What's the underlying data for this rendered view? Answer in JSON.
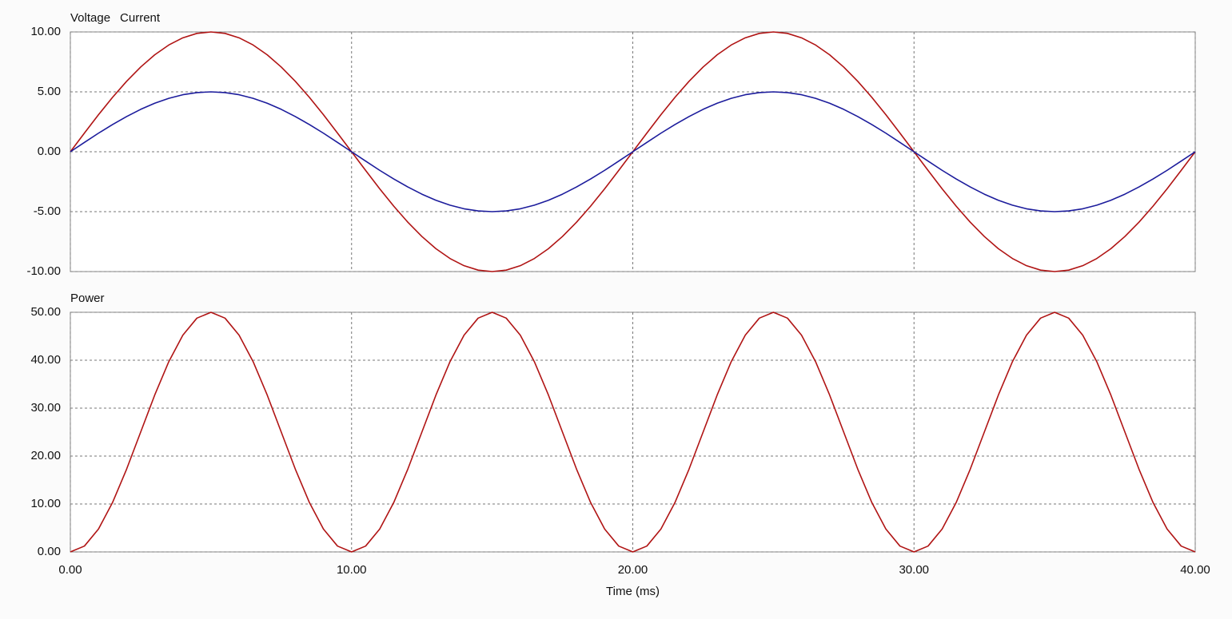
{
  "chart_data": [
    {
      "type": "line",
      "x": [
        0,
        0.5,
        1,
        1.5,
        2,
        2.5,
        3,
        3.5,
        4,
        4.5,
        5,
        5.5,
        6,
        6.5,
        7,
        7.5,
        8,
        8.5,
        9,
        9.5,
        10,
        10.5,
        11,
        11.5,
        12,
        12.5,
        13,
        13.5,
        14,
        14.5,
        15,
        15.5,
        16,
        16.5,
        17,
        17.5,
        18,
        18.5,
        19,
        19.5,
        20,
        20.5,
        21,
        21.5,
        22,
        22.5,
        23,
        23.5,
        24,
        24.5,
        25,
        25.5,
        26,
        26.5,
        27,
        27.5,
        28,
        28.5,
        29,
        29.5,
        30,
        30.5,
        31,
        31.5,
        32,
        32.5,
        33,
        33.5,
        34,
        34.5,
        35,
        35.5,
        36,
        36.5,
        37,
        37.5,
        38,
        38.5,
        39,
        39.5,
        40
      ],
      "series": [
        {
          "name": "Voltage",
          "color": "#b01414",
          "values": [
            0,
            1.56,
            3.09,
            4.54,
            5.88,
            7.07,
            8.09,
            8.91,
            9.51,
            9.88,
            10,
            9.88,
            9.51,
            8.91,
            8.09,
            7.07,
            5.88,
            4.54,
            3.09,
            1.56,
            0,
            -1.56,
            -3.09,
            -4.54,
            -5.88,
            -7.07,
            -8.09,
            -8.91,
            -9.51,
            -9.88,
            -10,
            -9.88,
            -9.51,
            -8.91,
            -8.09,
            -7.07,
            -5.88,
            -4.54,
            -3.09,
            -1.56,
            0,
            1.56,
            3.09,
            4.54,
            5.88,
            7.07,
            8.09,
            8.91,
            9.51,
            9.88,
            10,
            9.88,
            9.51,
            8.91,
            8.09,
            7.07,
            5.88,
            4.54,
            3.09,
            1.56,
            0,
            -1.56,
            -3.09,
            -4.54,
            -5.88,
            -7.07,
            -8.09,
            -8.91,
            -9.51,
            -9.88,
            -10,
            -9.88,
            -9.51,
            -8.91,
            -8.09,
            -7.07,
            -5.88,
            -4.54,
            -3.09,
            -1.56,
            0
          ]
        },
        {
          "name": "Current",
          "color": "#1c1c9c",
          "values": [
            0,
            0.78,
            1.55,
            2.27,
            2.94,
            3.54,
            4.05,
            4.46,
            4.76,
            4.94,
            5,
            4.94,
            4.76,
            4.46,
            4.05,
            3.54,
            2.94,
            2.27,
            1.55,
            0.78,
            0,
            -0.78,
            -1.55,
            -2.27,
            -2.94,
            -3.54,
            -4.05,
            -4.46,
            -4.76,
            -4.94,
            -5,
            -4.94,
            -4.76,
            -4.46,
            -4.05,
            -3.54,
            -2.94,
            -2.27,
            -1.55,
            -0.78,
            0,
            0.78,
            1.55,
            2.27,
            2.94,
            3.54,
            4.05,
            4.46,
            4.76,
            4.94,
            5,
            4.94,
            4.76,
            4.46,
            4.05,
            3.54,
            2.94,
            2.27,
            1.55,
            0.78,
            0,
            -0.78,
            -1.55,
            -2.27,
            -2.94,
            -3.54,
            -4.05,
            -4.46,
            -4.76,
            -4.94,
            -5,
            -4.94,
            -4.76,
            -4.46,
            -4.05,
            -3.54,
            -2.94,
            -2.27,
            -1.55,
            -0.78,
            0
          ]
        }
      ],
      "xlim": [
        0,
        40
      ],
      "xticks": [
        0,
        10,
        20,
        30,
        40
      ],
      "ylim": [
        -10,
        10
      ],
      "yticks": [
        {
          "value": -10,
          "label": "-10.00"
        },
        {
          "value": -5,
          "label": "-5.00"
        },
        {
          "value": 0,
          "label": "0.00"
        },
        {
          "value": 5,
          "label": "5.00"
        },
        {
          "value": 10,
          "label": "10.00"
        }
      ],
      "grid": true
    },
    {
      "type": "line",
      "x": [
        0,
        0.5,
        1,
        1.5,
        2,
        2.5,
        3,
        3.5,
        4,
        4.5,
        5,
        5.5,
        6,
        6.5,
        7,
        7.5,
        8,
        8.5,
        9,
        9.5,
        10,
        10.5,
        11,
        11.5,
        12,
        12.5,
        13,
        13.5,
        14,
        14.5,
        15,
        15.5,
        16,
        16.5,
        17,
        17.5,
        18,
        18.5,
        19,
        19.5,
        20,
        20.5,
        21,
        21.5,
        22,
        22.5,
        23,
        23.5,
        24,
        24.5,
        25,
        25.5,
        26,
        26.5,
        27,
        27.5,
        28,
        28.5,
        29,
        29.5,
        30,
        30.5,
        31,
        31.5,
        32,
        32.5,
        33,
        33.5,
        34,
        34.5,
        35,
        35.5,
        36,
        36.5,
        37,
        37.5,
        38,
        38.5,
        39,
        39.5,
        40
      ],
      "series": [
        {
          "name": "Power",
          "color": "#b01414",
          "values": [
            0,
            1.22,
            4.77,
            10.31,
            17.27,
            25,
            32.73,
            39.69,
            45.23,
            48.78,
            50,
            48.78,
            45.23,
            39.69,
            32.73,
            25,
            17.27,
            10.31,
            4.77,
            1.22,
            0,
            1.22,
            4.77,
            10.31,
            17.27,
            25,
            32.73,
            39.69,
            45.23,
            48.78,
            50,
            48.78,
            45.23,
            39.69,
            32.73,
            25,
            17.27,
            10.31,
            4.77,
            1.22,
            0,
            1.22,
            4.77,
            10.31,
            17.27,
            25,
            32.73,
            39.69,
            45.23,
            48.78,
            50,
            48.78,
            45.23,
            39.69,
            32.73,
            25,
            17.27,
            10.31,
            4.77,
            1.22,
            0,
            1.22,
            4.77,
            10.31,
            17.27,
            25,
            32.73,
            39.69,
            45.23,
            48.78,
            50,
            48.78,
            45.23,
            39.69,
            32.73,
            25,
            17.27,
            10.31,
            4.77,
            1.22,
            0
          ]
        }
      ],
      "xlabel": "Time (ms)",
      "xlim": [
        0,
        40
      ],
      "xticks": [
        {
          "value": 0,
          "label": "0.00"
        },
        {
          "value": 10,
          "label": "10.00"
        },
        {
          "value": 20,
          "label": "20.00"
        },
        {
          "value": 30,
          "label": "30.00"
        },
        {
          "value": 40,
          "label": "40.00"
        }
      ],
      "ylim": [
        0,
        50
      ],
      "yticks": [
        {
          "value": 0,
          "label": "0.00"
        },
        {
          "value": 10,
          "label": "10.00"
        },
        {
          "value": 20,
          "label": "20.00"
        },
        {
          "value": 30,
          "label": "30.00"
        },
        {
          "value": 40,
          "label": "40.00"
        },
        {
          "value": 50,
          "label": "50.00"
        }
      ],
      "grid": true
    }
  ]
}
